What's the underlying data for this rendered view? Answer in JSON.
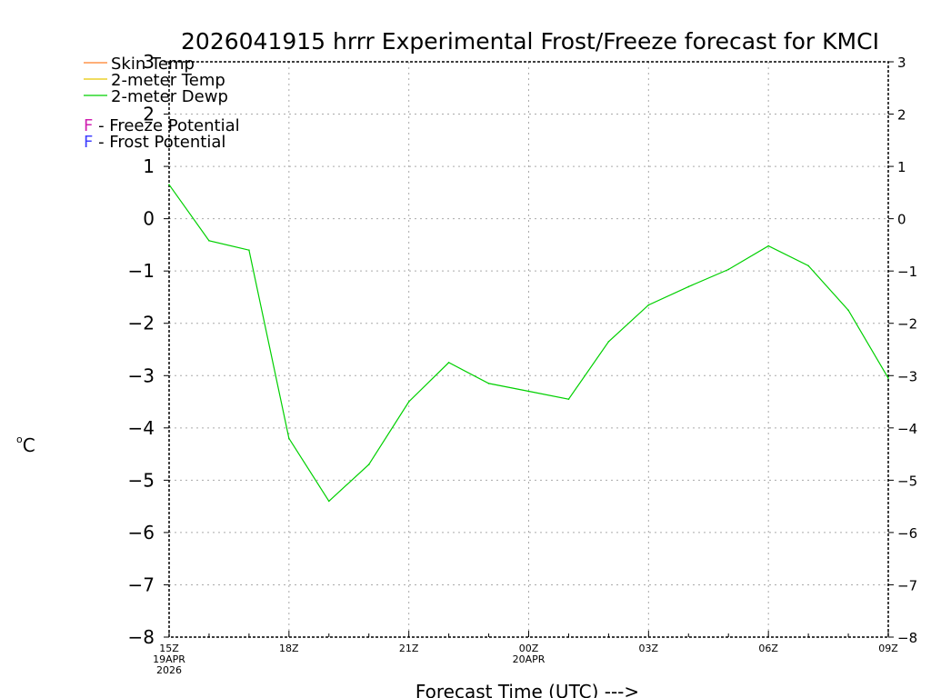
{
  "chart_data": {
    "type": "line",
    "title": "2026041915 hrrr Experimental Frost/Freeze forecast for KMCI",
    "ylabel_prefix": "o",
    "ylabel": "C",
    "xlabel": "Forecast Time (UTC) --->",
    "ylim": [
      -8,
      3
    ],
    "yticks": [
      "−8",
      "−7",
      "−6",
      "−5",
      "−4",
      "−3",
      "−2",
      "−1",
      "0",
      "1",
      "2",
      "3"
    ],
    "ytick_values": [
      -8,
      -7,
      -6,
      -5,
      -4,
      -3,
      -2,
      -1,
      0,
      1,
      2,
      3
    ],
    "xlim": [
      0,
      18
    ],
    "xticks": [
      {
        "hour": 0,
        "lines": [
          "15Z",
          "19APR",
          "2026"
        ]
      },
      {
        "hour": 3,
        "lines": [
          "18Z"
        ]
      },
      {
        "hour": 6,
        "lines": [
          "21Z"
        ]
      },
      {
        "hour": 9,
        "lines": [
          "00Z",
          "20APR"
        ]
      },
      {
        "hour": 12,
        "lines": [
          "03Z"
        ]
      },
      {
        "hour": 15,
        "lines": [
          "06Z"
        ]
      },
      {
        "hour": 18,
        "lines": [
          "09Z"
        ]
      }
    ],
    "grid": true,
    "legend": [
      {
        "label": "Skin Temp",
        "color": "#ff7f27"
      },
      {
        "label": "2-meter Temp",
        "color": "#e6c800"
      },
      {
        "label": "2-meter Dewp",
        "color": "#00d000"
      }
    ],
    "potential_legend": [
      {
        "letter": "F",
        "text": " - Freeze Potential",
        "color": "#d020b0"
      },
      {
        "letter": "F",
        "text": " - Frost Potential",
        "color": "#4040ff"
      }
    ],
    "series": [
      {
        "name": "2-meter Dewp",
        "color": "#00d000",
        "x": [
          0,
          1,
          2,
          3,
          4,
          5,
          6,
          7,
          8,
          9,
          10,
          11,
          12,
          13,
          14,
          15,
          16,
          17,
          18
        ],
        "values": [
          0.65,
          -0.42,
          -0.6,
          -4.2,
          -5.4,
          -4.7,
          -3.5,
          -2.75,
          -3.15,
          -3.3,
          -3.45,
          -2.35,
          -1.65,
          -1.3,
          -0.97,
          -0.52,
          -0.9,
          -1.75,
          -3.05
        ]
      }
    ]
  }
}
